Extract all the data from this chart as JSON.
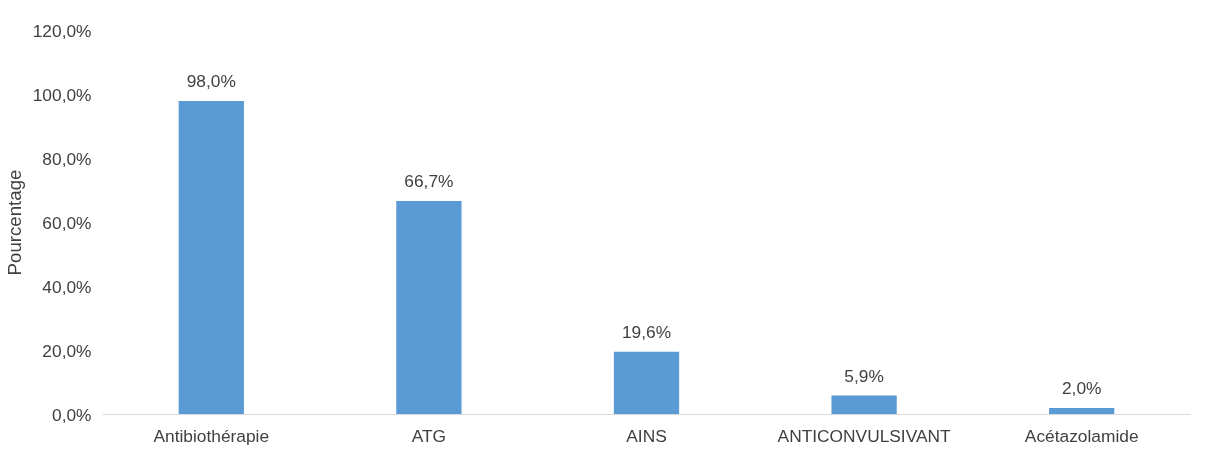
{
  "chart_data": {
    "type": "bar",
    "ylabel": "Pourcentage",
    "categories": [
      "Antibiothérapie",
      "ATG",
      "AINS",
      "ANTICONVULSIVANT",
      "Acétazolamide"
    ],
    "values": [
      98.0,
      66.7,
      19.6,
      5.9,
      2.0
    ],
    "value_labels": [
      "98,0%",
      "66,7%",
      "19,6%",
      "5,9%",
      "2,0%"
    ],
    "color": "#5b9bd5",
    "ylim": [
      0,
      120
    ],
    "yticks": [
      {
        "value": 0,
        "label": "0,0%"
      },
      {
        "value": 20,
        "label": "20,0%"
      },
      {
        "value": 40,
        "label": "40,0%"
      },
      {
        "value": 60,
        "label": "60,0%"
      },
      {
        "value": 80,
        "label": "80,0%"
      },
      {
        "value": 100,
        "label": "100,0%"
      },
      {
        "value": 120,
        "label": "120,0%"
      }
    ],
    "grid": false
  }
}
